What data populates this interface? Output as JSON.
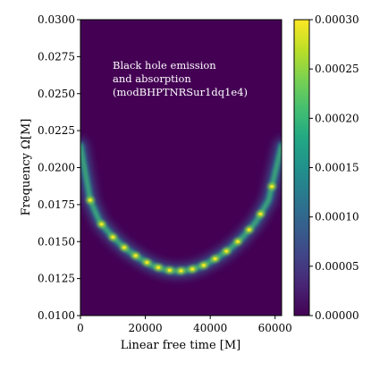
{
  "chart_data": {
    "type": "heatmap",
    "annotation": [
      "Black hole emission",
      "and absorption",
      "(modBHPTNRSur1dq1e4)"
    ],
    "xlabel": "Linear free time [M]",
    "ylabel": "Frequency Ω[M]",
    "xlim": [
      0,
      62000
    ],
    "ylim": [
      0.01,
      0.03
    ],
    "x_ticks": [
      0,
      20000,
      40000,
      60000
    ],
    "x_tick_labels": [
      "0",
      "20000",
      "40000",
      "60000"
    ],
    "y_ticks": [
      0.01,
      0.0125,
      0.015,
      0.0175,
      0.02,
      0.0225,
      0.025,
      0.0275,
      0.03
    ],
    "y_tick_labels": [
      "0.0100",
      "0.0125",
      "0.0150",
      "0.0175",
      "0.0200",
      "0.0225",
      "0.0250",
      "0.0275",
      "0.0300"
    ],
    "colorbar": {
      "colormap": "viridis",
      "range": [
        0,
        0.0003
      ],
      "ticks": [
        0,
        5e-05,
        0.0001,
        0.00015,
        0.0002,
        0.00025,
        0.0003
      ],
      "tick_labels": [
        "0.00000",
        "0.00005",
        "0.00010",
        "0.00015",
        "0.00020",
        "0.00025",
        "0.00030"
      ]
    },
    "ridge": {
      "x": [
        0,
        3000,
        6000,
        10000,
        14000,
        18000,
        22000,
        26000,
        30000,
        34000,
        38000,
        42000,
        46000,
        50000,
        54000,
        58000,
        62000
      ],
      "y": [
        0.0215,
        0.0178,
        0.0163,
        0.0153,
        0.0145,
        0.0139,
        0.0134,
        0.0131,
        0.013,
        0.0131,
        0.0134,
        0.0139,
        0.0145,
        0.0153,
        0.0163,
        0.0178,
        0.0215
      ],
      "peak_times": [
        3000,
        6500,
        10000,
        13500,
        17000,
        20500,
        24000,
        27500,
        31000,
        34500,
        38000,
        41500,
        45000,
        48500,
        52000,
        55500,
        59000
      ],
      "peak_intensity": 0.00026
    }
  }
}
